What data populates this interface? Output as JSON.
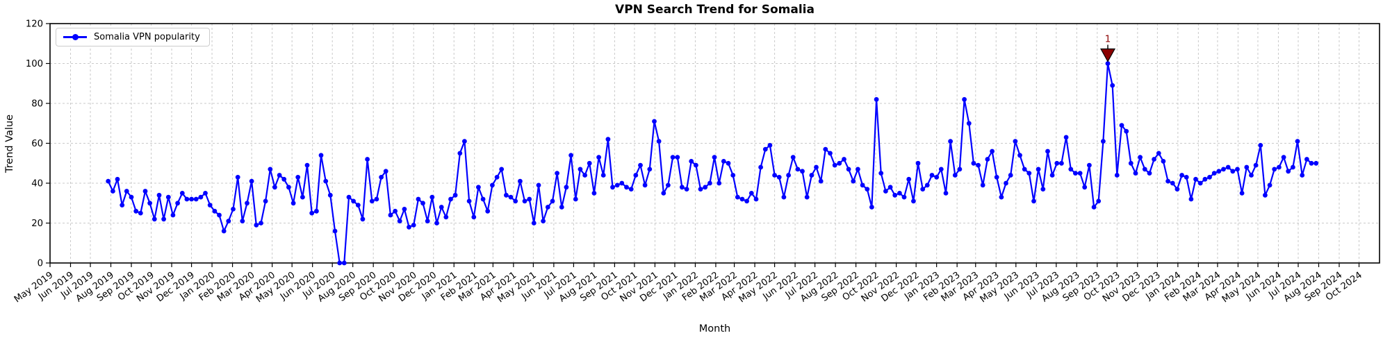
{
  "chart_data": {
    "type": "line",
    "title": "VPN Search Trend for Somalia",
    "xlabel": "Month",
    "ylabel": "Trend Value",
    "ylim": [
      0,
      120
    ],
    "yticks": [
      0,
      20,
      40,
      60,
      80,
      100,
      120
    ],
    "grid": true,
    "grid_color": "#c9c9c9",
    "legend_position": "upper left",
    "x_range": [
      "2019-05-01",
      "2024-11-01"
    ],
    "x_tick_labels": [
      "May 2019",
      "Jun 2019",
      "Jul 2019",
      "Aug 2019",
      "Sep 2019",
      "Oct 2019",
      "Nov 2019",
      "Dec 2019",
      "Jan 2020",
      "Feb 2020",
      "Mar 2020",
      "Apr 2020",
      "May 2020",
      "Jun 2020",
      "Jul 2020",
      "Aug 2020",
      "Sep 2020",
      "Oct 2020",
      "Nov 2020",
      "Dec 2020",
      "Jan 2021",
      "Feb 2021",
      "Mar 2021",
      "Apr 2021",
      "May 2021",
      "Jun 2021",
      "Jul 2021",
      "Aug 2021",
      "Sep 2021",
      "Oct 2021",
      "Nov 2021",
      "Dec 2021",
      "Jan 2022",
      "Feb 2022",
      "Mar 2022",
      "Apr 2022",
      "May 2022",
      "Jun 2022",
      "Jul 2022",
      "Aug 2022",
      "Sep 2022",
      "Oct 2022",
      "Nov 2022",
      "Dec 2022",
      "Jan 2023",
      "Feb 2023",
      "Mar 2023",
      "Apr 2023",
      "May 2023",
      "Jun 2023",
      "Jul 2023",
      "Aug 2023",
      "Sep 2023",
      "Oct 2023",
      "Nov 2023",
      "Dec 2023",
      "Jan 2024",
      "Feb 2024",
      "Mar 2024",
      "Apr 2024",
      "May 2024",
      "Jun 2024",
      "Jul 2024",
      "Aug 2024",
      "Sep 2024",
      "Oct 2024"
    ],
    "series": [
      {
        "name": "Somalia VPN popularity",
        "color": "#0000ff",
        "start_date": "2019-07-28",
        "frequency": "weekly",
        "values": [
          41,
          36,
          42,
          29,
          36,
          33,
          26,
          25,
          36,
          30,
          22,
          34,
          22,
          33,
          24,
          30,
          35,
          32,
          32,
          32,
          33,
          35,
          29,
          26,
          24,
          16,
          21,
          27,
          43,
          21,
          30,
          41,
          19,
          20,
          31,
          47,
          38,
          44,
          42,
          38,
          30,
          43,
          33,
          49,
          25,
          26,
          54,
          41,
          34,
          16,
          0,
          0,
          33,
          31,
          29,
          22,
          52,
          31,
          32,
          43,
          46,
          24,
          26,
          21,
          27,
          18,
          19,
          32,
          30,
          21,
          33,
          20,
          28,
          23,
          32,
          34,
          55,
          61,
          31,
          23,
          38,
          32,
          26,
          39,
          43,
          47,
          34,
          33,
          31,
          41,
          31,
          32,
          20,
          39,
          21,
          28,
          31,
          45,
          28,
          38,
          54,
          32,
          47,
          44,
          50,
          35,
          53,
          44,
          62,
          38,
          39,
          40,
          38,
          37,
          44,
          49,
          39,
          47,
          71,
          61,
          35,
          39,
          53,
          53,
          38,
          37,
          51,
          49,
          37,
          38,
          40,
          53,
          40,
          51,
          50,
          44,
          33,
          32,
          31,
          35,
          32,
          48,
          57,
          59,
          44,
          43,
          33,
          44,
          53,
          47,
          46,
          33,
          44,
          48,
          41,
          57,
          55,
          49,
          50,
          52,
          47,
          41,
          47,
          39,
          37,
          28,
          82,
          45,
          36,
          38,
          34,
          35,
          33,
          42,
          31,
          50,
          37,
          39,
          44,
          43,
          47,
          35,
          61,
          44,
          47,
          82,
          70,
          50,
          49,
          39,
          52,
          56,
          43,
          33,
          40,
          44,
          61,
          54,
          47,
          45,
          31,
          47,
          37,
          56,
          44,
          50,
          50,
          63,
          47,
          45,
          45,
          38,
          49,
          28,
          31,
          61,
          100,
          89,
          44,
          69,
          66,
          50,
          45,
          53,
          47,
          45,
          52,
          55,
          51,
          41,
          40,
          37,
          44,
          43,
          32,
          42,
          40,
          42,
          43,
          45,
          46,
          47,
          48,
          46,
          47,
          35,
          48,
          44,
          49,
          59,
          34,
          39,
          47,
          48,
          53,
          46,
          48,
          61,
          44,
          52,
          50,
          50
        ]
      }
    ],
    "annotations": [
      {
        "label": "1",
        "series": 0,
        "point_index": 216,
        "value": 100,
        "color": "#8b0000"
      }
    ]
  }
}
